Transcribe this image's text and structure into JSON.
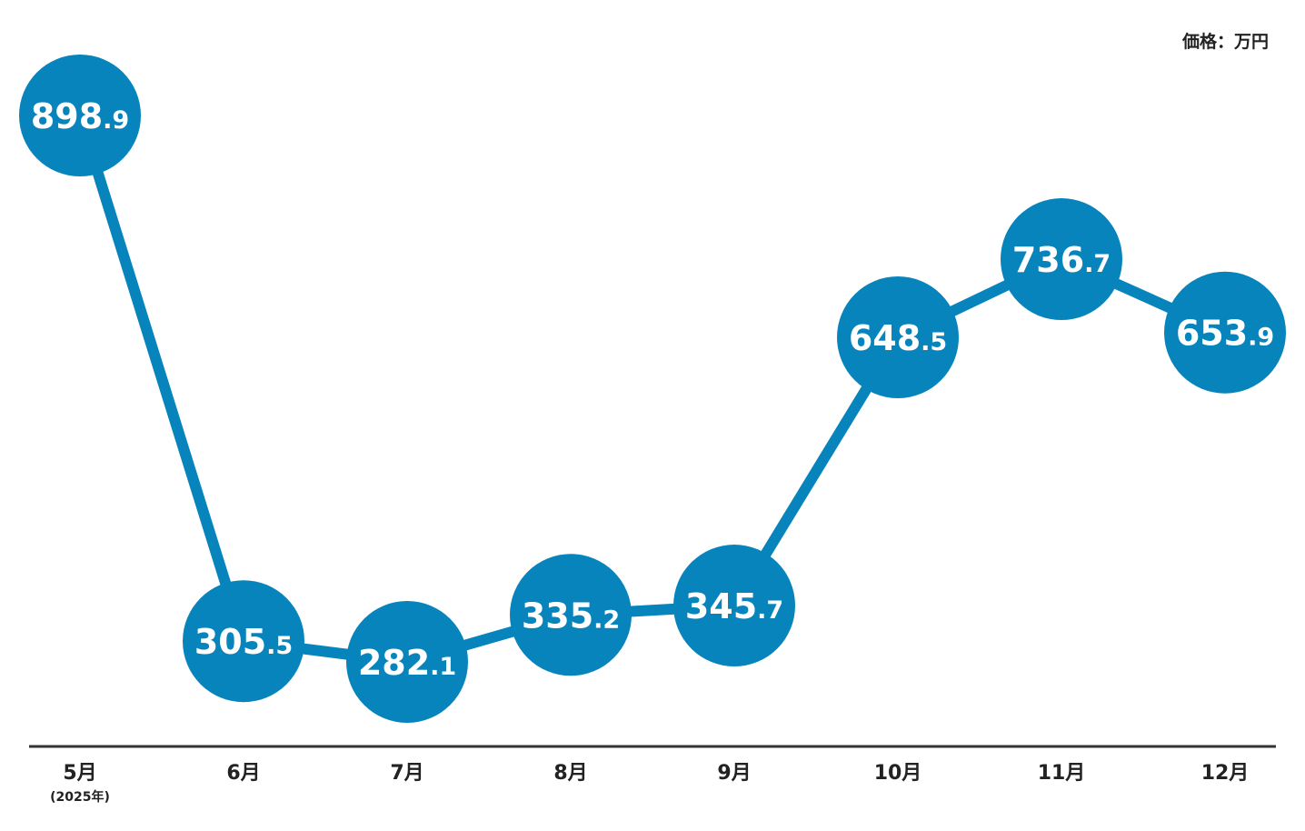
{
  "unit_label": "価格：万円",
  "colors": {
    "accent": "#0784BC",
    "axis": "#333333",
    "text": "#222222",
    "label_text": "#ffffff"
  },
  "chart_data": {
    "type": "line",
    "categories": [
      "5月",
      "6月",
      "7月",
      "8月",
      "9月",
      "10月",
      "11月",
      "12月"
    ],
    "category_sublabels": [
      "(2025年)",
      "",
      "",
      "",
      "",
      "",
      "",
      ""
    ],
    "values": [
      898.9,
      305.5,
      282.1,
      335.2,
      345.7,
      648.5,
      736.7,
      653.9
    ],
    "labels": [
      "898.9",
      "305.5",
      "282.1",
      "335.2",
      "345.7",
      "648.5",
      "736.7",
      "653.9"
    ],
    "ylabel": "価格：万円",
    "grid": false,
    "legend": "none"
  }
}
